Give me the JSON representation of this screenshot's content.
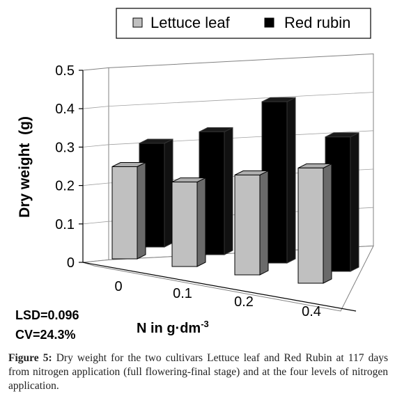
{
  "chart_data": {
    "type": "bar",
    "style": "3d-clustered",
    "categories": [
      "0",
      "0.1",
      "0.2",
      "0.4"
    ],
    "series": [
      {
        "name": "Lettuce leaf",
        "values": [
          0.24,
          0.22,
          0.26,
          0.3
        ],
        "color": "#c0c0c0"
      },
      {
        "name": "Red rubin",
        "values": [
          0.27,
          0.32,
          0.42,
          0.35
        ],
        "color": "#000000"
      }
    ],
    "ylim": [
      0,
      0.5
    ],
    "yticks": [
      "0",
      "0.1",
      "0.2",
      "0.3",
      "0.4",
      "0.5"
    ],
    "ylabel": "Dry weight  (g)",
    "xlabel_main": "N in g·dm",
    "xlabel_sup": "-3",
    "legend_position": "top",
    "annotations": {
      "lsd": "LSD=0.096",
      "cv": "CV=24.3%"
    }
  },
  "caption": {
    "label": "Figure 5:",
    "text": " Dry weight for the two cultivars Lettuce leaf and Red Rubin at 117 days from nitrogen application (full flowering-final stage) and at the four levels of nitrogen application."
  }
}
